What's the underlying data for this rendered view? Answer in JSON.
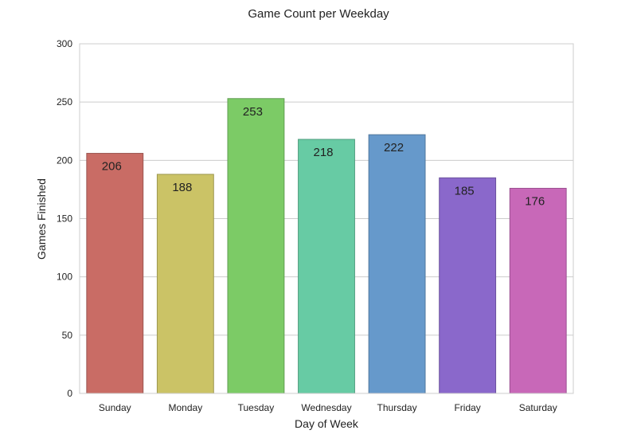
{
  "chart_data": {
    "type": "bar",
    "title": "Game Count per Weekday",
    "xlabel": "Day of Week",
    "ylabel": "Games Finished",
    "categories": [
      "Sunday",
      "Monday",
      "Tuesday",
      "Wednesday",
      "Thursday",
      "Friday",
      "Saturday"
    ],
    "values": [
      206,
      188,
      253,
      218,
      222,
      185,
      176
    ],
    "value_labels": [
      "206",
      "188",
      "253",
      "218",
      "222",
      "185",
      "176"
    ],
    "colors": [
      "#c96c65",
      "#cbc366",
      "#7ccb66",
      "#67cba4",
      "#6699cb",
      "#8a68cb",
      "#c868b8"
    ],
    "edge_colors": [
      "#9a5550",
      "#9c9750",
      "#5f9c50",
      "#509c7e",
      "#50779c",
      "#6b519c",
      "#9a5090"
    ],
    "ylim": [
      0,
      300
    ],
    "yticks": [
      0,
      50,
      100,
      150,
      200,
      250,
      300
    ],
    "ytick_labels": [
      "0",
      "50",
      "100",
      "150",
      "200",
      "250",
      "300"
    ],
    "grid": true
  }
}
